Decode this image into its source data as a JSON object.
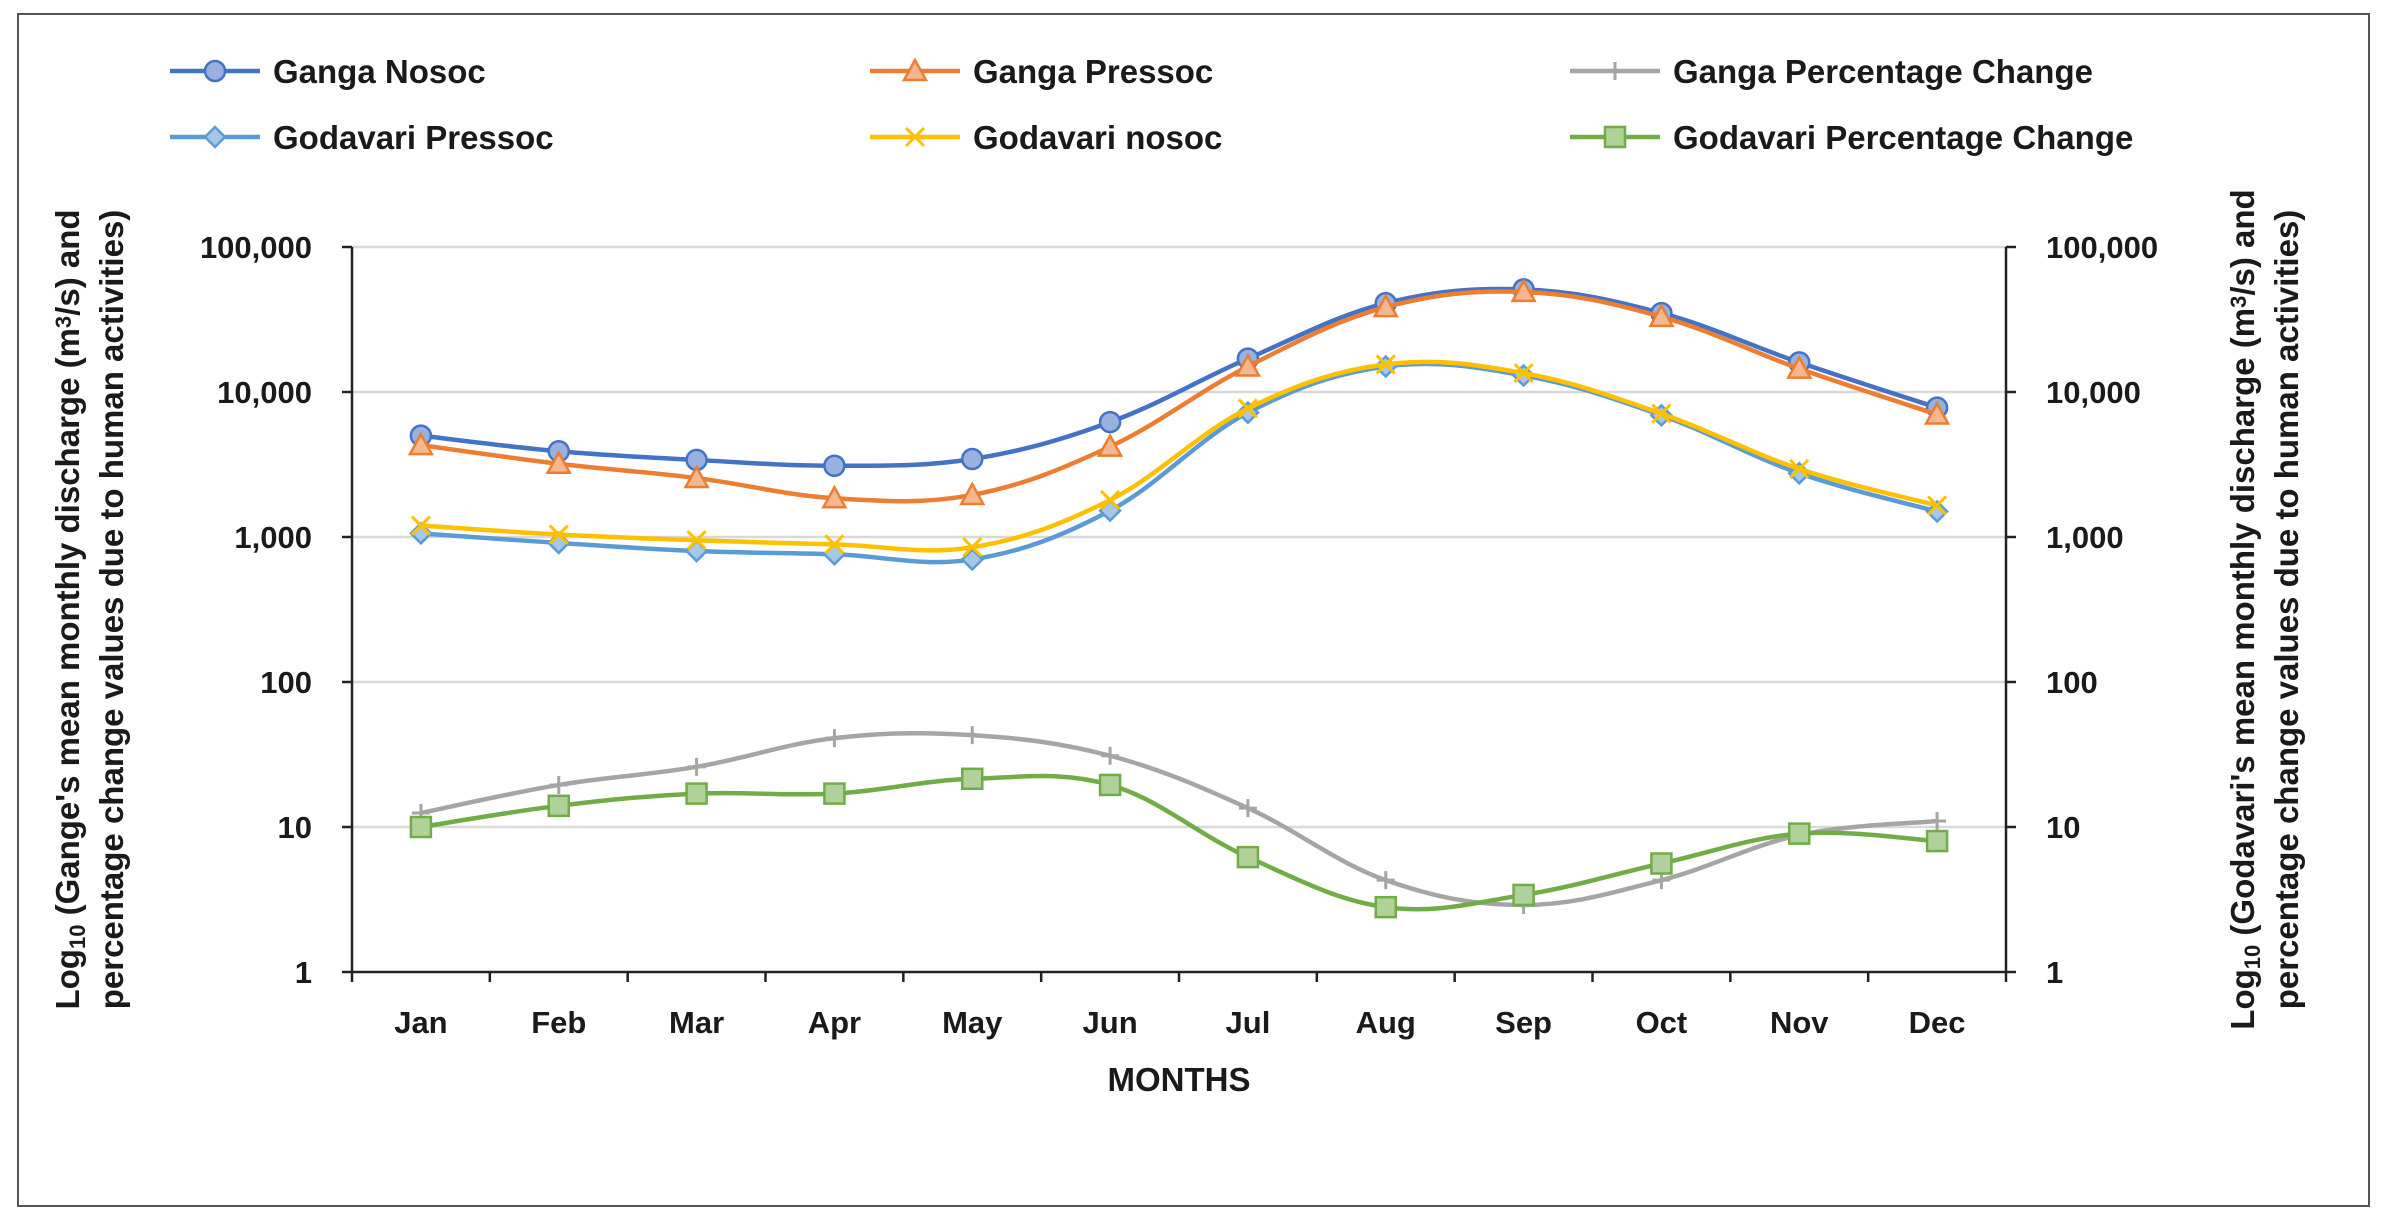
{
  "chart_data": {
    "type": "line",
    "y_scale": "log",
    "grid": true,
    "legend_position": "top",
    "xlabel": "MONTHS",
    "ylabel_left": {
      "line1_prefix": "Log",
      "sub": "10",
      "line1_suffix": " (Gange's mean monthly discharge (m",
      "sup": "3",
      "line1_end": "/s) and",
      "line2": "percentage change values due to human activities)"
    },
    "ylabel_right": {
      "line1_prefix": "Log",
      "sub": "10",
      "line1_suffix": "  (Godavari's mean monthly discharge (m",
      "sup": "3",
      "line1_end": "/s) and",
      "line2": "percentage change values due to human activities)"
    },
    "ylim": [
      1,
      100000
    ],
    "y_ticks": [
      1,
      10,
      100,
      1000,
      10000,
      100000
    ],
    "y_tick_labels": [
      "1",
      "10",
      "100",
      "1,000",
      "10,000",
      "100,000"
    ],
    "categories": [
      "Jan",
      "Feb",
      "Mar",
      "Apr",
      "May",
      "Jun",
      "Jul",
      "Aug",
      "Sep",
      "Oct",
      "Nov",
      "Dec"
    ],
    "series": [
      {
        "name": "Ganga Nosoc",
        "color": "#4472C4",
        "marker": "circle",
        "values": [
          5000,
          3900,
          3400,
          3100,
          3450,
          6200,
          17000,
          41000,
          51000,
          35000,
          16000,
          7800
        ]
      },
      {
        "name": "Ganga Pressoc",
        "color": "#ED7D31",
        "marker": "triangle",
        "values": [
          4300,
          3200,
          2550,
          1850,
          1950,
          4200,
          15000,
          38500,
          49000,
          33000,
          14500,
          7000
        ]
      },
      {
        "name": "Ganga Percentage Change",
        "color": "#A5A5A5",
        "marker": "plus",
        "values": [
          12.5,
          19.5,
          26,
          41,
          43,
          31,
          13.5,
          4.3,
          2.9,
          4.3,
          8.8,
          11
        ]
      },
      {
        "name": "Godavari Pressoc",
        "color": "#5B9BD5",
        "marker": "diamond",
        "values": [
          1060,
          910,
          800,
          760,
          700,
          1520,
          7200,
          15000,
          13000,
          6900,
          2750,
          1500
        ]
      },
      {
        "name": "Godavari nosoc",
        "color": "#FFC000",
        "marker": "x",
        "values": [
          1200,
          1040,
          950,
          890,
          850,
          1800,
          7700,
          15500,
          13500,
          7100,
          2950,
          1650
        ]
      },
      {
        "name": "Godavari Percentage Change",
        "color": "#70AD47",
        "marker": "square",
        "values": [
          10,
          14,
          17,
          17,
          21.5,
          19.5,
          6.2,
          2.8,
          3.4,
          5.6,
          9,
          8
        ]
      }
    ]
  }
}
